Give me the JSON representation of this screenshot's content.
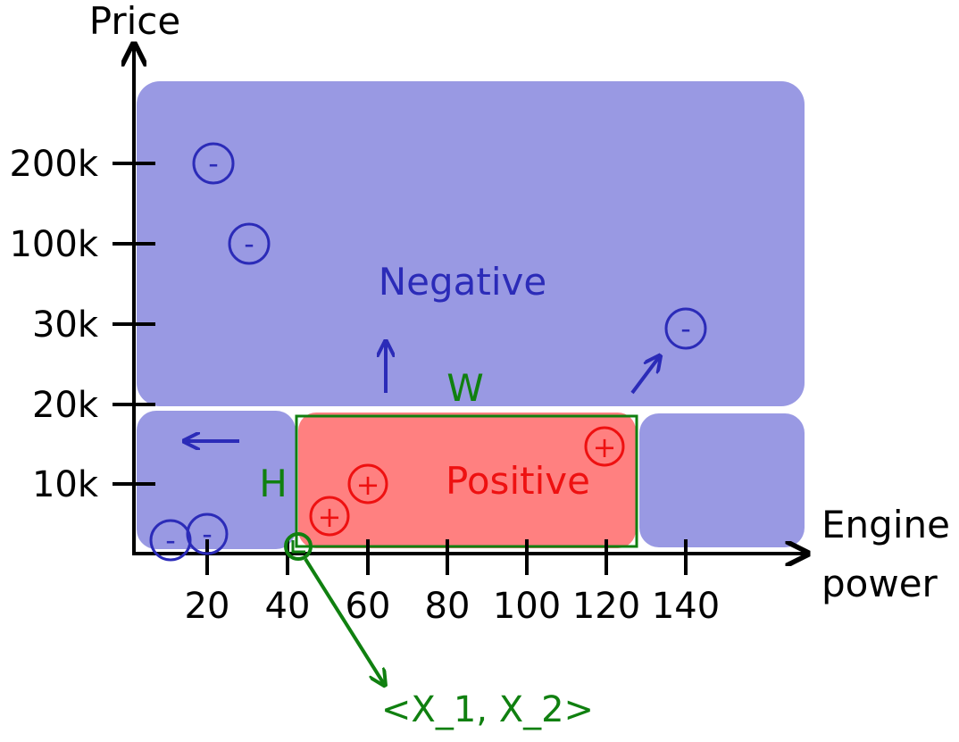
{
  "axes": {
    "y_label": "Price",
    "x_label_line1": "Engine",
    "x_label_line2": "power",
    "y_ticks": [
      "10k",
      "20k",
      "30k",
      "100k",
      "200k"
    ],
    "x_ticks": [
      "20",
      "40",
      "60",
      "80",
      "100",
      "120",
      "140"
    ]
  },
  "regions": {
    "negative_label": "Negative",
    "positive_label": "Positive"
  },
  "box": {
    "width_label": "W",
    "height_label": "H",
    "corner_label": "<X_1, X_2>"
  },
  "markers": {
    "negative_symbol": "-",
    "positive_symbol": "+"
  },
  "colors": {
    "negative_fill": "#9999e3",
    "negative_stroke": "#2b2bb8",
    "positive_fill": "#ff8080",
    "positive_stroke": "#ee1111",
    "box_stroke": "#108010",
    "axis": "#000000"
  }
}
